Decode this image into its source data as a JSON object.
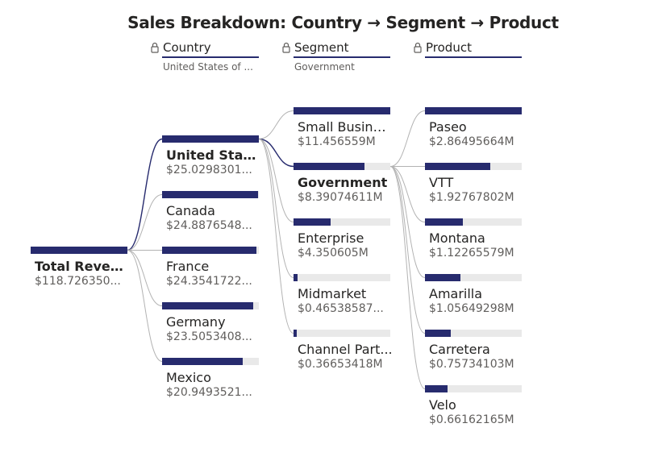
{
  "chart_data": {
    "type": "decomposition_tree",
    "title": "Sales Breakdown: Country → Segment → Product",
    "levels": [
      {
        "name": "Country",
        "selected": "United States of ..."
      },
      {
        "name": "Segment",
        "selected": "Government"
      },
      {
        "name": "Product",
        "selected": ""
      }
    ],
    "root": {
      "label": "Total Reven...",
      "value": "$118.726350..."
    },
    "countries": [
      {
        "label": "United Stat...",
        "value": "$25.0298301...",
        "fraction": 1.0,
        "selected": true
      },
      {
        "label": "Canada",
        "value": "$24.8876548...",
        "fraction": 0.994,
        "selected": false
      },
      {
        "label": "France",
        "value": "$24.3541722...",
        "fraction": 0.973,
        "selected": false
      },
      {
        "label": "Germany",
        "value": "$23.5053408...",
        "fraction": 0.939,
        "selected": false
      },
      {
        "label": "Mexico",
        "value": "$20.9493521...",
        "fraction": 0.837,
        "selected": false
      }
    ],
    "segments": [
      {
        "label": "Small Busine...",
        "value": "$11.456559M",
        "fraction": 1.0,
        "selected": false
      },
      {
        "label": "Government",
        "value": "$8.39074611M",
        "fraction": 0.732,
        "selected": true
      },
      {
        "label": "Enterprise",
        "value": "$4.350605M",
        "fraction": 0.38,
        "selected": false
      },
      {
        "label": "Midmarket",
        "value": "$0.46538587...",
        "fraction": 0.041,
        "selected": false
      },
      {
        "label": "Channel Part...",
        "value": "$0.36653418M",
        "fraction": 0.032,
        "selected": false
      }
    ],
    "products": [
      {
        "label": "Paseo",
        "value": "$2.86495664M",
        "fraction": 1.0,
        "selected": false
      },
      {
        "label": "VTT",
        "value": "$1.92767802M",
        "fraction": 0.673,
        "selected": false
      },
      {
        "label": "Montana",
        "value": "$1.12265579M",
        "fraction": 0.392,
        "selected": false
      },
      {
        "label": "Amarilla",
        "value": "$1.05649298M",
        "fraction": 0.369,
        "selected": false
      },
      {
        "label": "Carretera",
        "value": "$0.75734103M",
        "fraction": 0.264,
        "selected": false
      },
      {
        "label": "Velo",
        "value": "$0.66162165M",
        "fraction": 0.231,
        "selected": false
      }
    ]
  },
  "colors": {
    "bar": "#272b6e",
    "track": "#e9e9e9",
    "connector": "#b3b3b3",
    "connector_active": "#272b6e",
    "lock_icon": "#605e5c"
  },
  "icons": {
    "lock": "lock-icon"
  }
}
